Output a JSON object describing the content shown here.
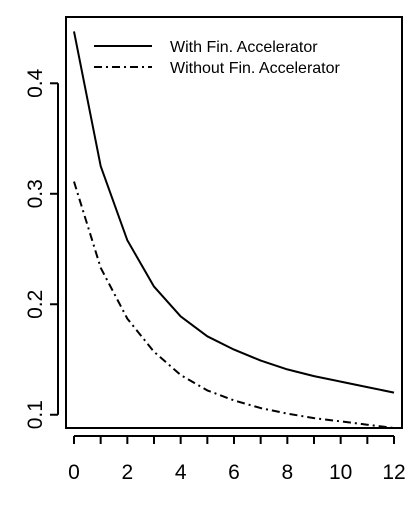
{
  "chart_data": {
    "type": "line",
    "title": "",
    "xlabel": "",
    "ylabel": "",
    "xlim": [
      -0.3,
      12.3
    ],
    "ylim": [
      0.088,
      0.46
    ],
    "grid": false,
    "legend_position": "top-right",
    "x_ticks": [
      0,
      2,
      4,
      6,
      8,
      10,
      12
    ],
    "y_ticks": [
      0.1,
      0.2,
      0.3,
      0.4
    ],
    "x": [
      0,
      1,
      2,
      3,
      4,
      5,
      6,
      7,
      8,
      9,
      10,
      11,
      12
    ],
    "series": [
      {
        "name": "With Fin. Accelerator",
        "dash": "solid",
        "values": [
          0.447,
          0.325,
          0.258,
          0.216,
          0.189,
          0.171,
          0.159,
          0.149,
          0.141,
          0.135,
          0.13,
          0.125,
          0.12
        ]
      },
      {
        "name": "Without Fin. Accelerator",
        "dash": "dashdot",
        "values": [
          0.311,
          0.233,
          0.187,
          0.157,
          0.136,
          0.122,
          0.113,
          0.106,
          0.101,
          0.097,
          0.094,
          0.091,
          0.088
        ]
      }
    ]
  }
}
